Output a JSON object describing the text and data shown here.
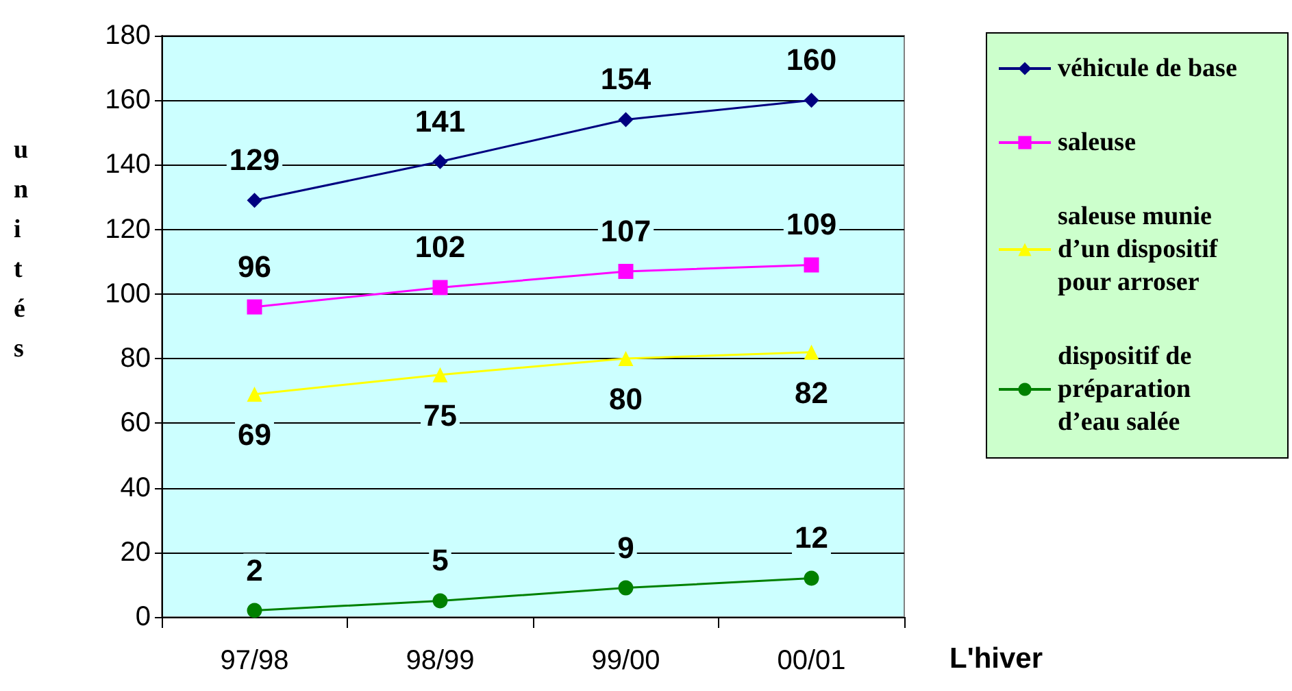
{
  "chart_data": {
    "type": "line",
    "xlabel": "L'hiver",
    "ylabel": "unités",
    "categories": [
      "97/98",
      "98/99",
      "99/00",
      "00/01"
    ],
    "ylim": [
      0,
      180
    ],
    "yticks": [
      0,
      20,
      40,
      60,
      80,
      100,
      120,
      140,
      160,
      180
    ],
    "grid": "y",
    "legend": "right",
    "data_labels": true,
    "series": [
      {
        "name": "véhicule de base",
        "color": "#000080",
        "marker": "diamond",
        "values": [
          129,
          141,
          154,
          160
        ]
      },
      {
        "name": "saleuse",
        "color": "#ff00ff",
        "marker": "square",
        "values": [
          96,
          102,
          107,
          109
        ]
      },
      {
        "name": "saleuse munie d’un dispositif pour arroser",
        "color": "#ffff00",
        "marker": "triangle",
        "values": [
          69,
          75,
          80,
          82
        ]
      },
      {
        "name": "dispositif de préparation d’eau salée",
        "color": "#008000",
        "marker": "circle",
        "values": [
          2,
          5,
          9,
          12
        ]
      }
    ]
  }
}
